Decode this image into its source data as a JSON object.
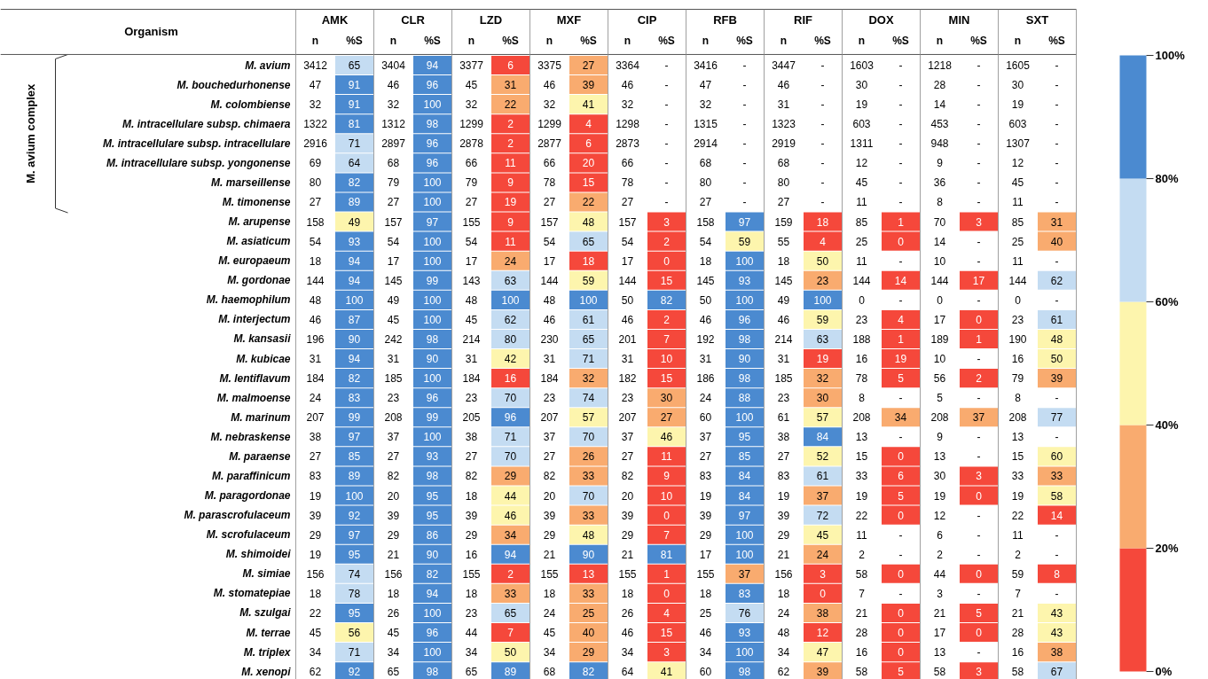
{
  "chart_data": {
    "type": "heatmap",
    "categories": [
      "n",
      "%S",
      "n",
      "%S",
      "n",
      "%S",
      "n",
      "%S",
      "n",
      "%S",
      "n",
      "%S",
      "n",
      "%S",
      "n",
      "%S",
      "n",
      "%S",
      "n",
      "%S"
    ],
    "y_categories": [
      "M. avium",
      "M. bouchedurhonense",
      "M. colombiense",
      "M. intracellulare subsp. chimaera",
      "M. intracellulare subsp. intracellulare",
      "M. intracellulare subsp. yongonense",
      "M. marseillense",
      "M. timonense",
      "M. arupense",
      "M. asiaticum",
      "M. europaeum",
      "M. gordonae",
      "M. haemophilum",
      "M. interjectum",
      "M. kansasii",
      "M. kubicae",
      "M. lentiflavum",
      "M. malmoense",
      "M. marinum",
      "M. nebraskense",
      "M. paraense",
      "M. paraffinicum",
      "M. paragordonae",
      "M. parascrofulaceum",
      "M. scrofulaceum",
      "M. shimoidei",
      "M. simiae",
      "M. stomatepiae",
      "M. szulgai",
      "M. terrae",
      "M. triplex",
      "M. xenopi"
    ],
    "cells": [
      [
        null,
        65,
        null,
        94,
        null,
        6,
        null,
        27,
        null,
        null,
        null,
        null,
        null,
        null,
        null,
        null,
        null,
        null,
        null,
        null
      ],
      [
        null,
        91,
        null,
        96,
        null,
        31,
        null,
        39,
        null,
        null,
        null,
        null,
        null,
        null,
        null,
        null,
        null,
        null,
        null,
        null
      ],
      [
        null,
        91,
        null,
        100,
        null,
        22,
        null,
        41,
        null,
        null,
        null,
        null,
        null,
        null,
        null,
        null,
        null,
        null,
        null,
        null
      ],
      [
        null,
        81,
        null,
        98,
        null,
        2,
        null,
        4,
        null,
        null,
        null,
        null,
        null,
        null,
        null,
        null,
        null,
        null,
        null,
        null
      ],
      [
        null,
        71,
        null,
        96,
        null,
        2,
        null,
        6,
        null,
        null,
        null,
        null,
        null,
        null,
        null,
        null,
        null,
        null,
        null,
        null
      ],
      [
        null,
        64,
        null,
        96,
        null,
        11,
        null,
        20,
        null,
        null,
        null,
        null,
        null,
        null,
        null,
        null,
        null,
        null,
        null,
        null
      ],
      [
        null,
        82,
        null,
        100,
        null,
        9,
        null,
        15,
        null,
        null,
        null,
        null,
        null,
        null,
        null,
        null,
        null,
        null,
        null,
        null
      ],
      [
        null,
        89,
        null,
        100,
        null,
        19,
        null,
        22,
        null,
        null,
        null,
        null,
        null,
        null,
        null,
        null,
        null,
        null,
        null,
        null
      ],
      [
        null,
        49,
        null,
        97,
        null,
        9,
        null,
        48,
        null,
        3,
        null,
        97,
        null,
        18,
        null,
        1,
        null,
        3,
        null,
        31
      ],
      [
        null,
        93,
        null,
        100,
        null,
        11,
        null,
        65,
        null,
        2,
        null,
        59,
        null,
        4,
        null,
        0,
        null,
        null,
        null,
        40
      ],
      [
        null,
        94,
        null,
        100,
        null,
        24,
        null,
        18,
        null,
        0,
        null,
        100,
        null,
        50,
        null,
        null,
        null,
        null,
        null,
        null
      ],
      [
        null,
        94,
        null,
        99,
        null,
        63,
        null,
        59,
        null,
        15,
        null,
        93,
        null,
        23,
        null,
        14,
        null,
        17,
        null,
        62
      ],
      [
        null,
        100,
        null,
        100,
        null,
        100,
        null,
        100,
        null,
        82,
        null,
        100,
        null,
        100,
        null,
        null,
        null,
        null,
        null,
        null
      ],
      [
        null,
        87,
        null,
        100,
        null,
        62,
        null,
        61,
        null,
        2,
        null,
        96,
        null,
        59,
        null,
        4,
        null,
        0,
        null,
        61
      ],
      [
        null,
        90,
        null,
        98,
        null,
        80,
        null,
        65,
        null,
        7,
        null,
        98,
        null,
        63,
        null,
        1,
        null,
        1,
        null,
        48
      ],
      [
        null,
        94,
        null,
        90,
        null,
        42,
        null,
        71,
        null,
        10,
        null,
        90,
        null,
        19,
        null,
        19,
        null,
        null,
        null,
        50
      ],
      [
        null,
        82,
        null,
        100,
        null,
        16,
        null,
        32,
        null,
        15,
        null,
        98,
        null,
        32,
        null,
        5,
        null,
        2,
        null,
        39
      ],
      [
        null,
        83,
        null,
        96,
        null,
        70,
        null,
        74,
        null,
        30,
        null,
        88,
        null,
        30,
        null,
        null,
        null,
        null,
        null,
        null
      ],
      [
        null,
        99,
        null,
        99,
        null,
        96,
        null,
        57,
        null,
        27,
        null,
        100,
        null,
        57,
        null,
        34,
        null,
        37,
        null,
        77
      ],
      [
        null,
        97,
        null,
        100,
        null,
        71,
        null,
        70,
        null,
        46,
        null,
        95,
        null,
        84,
        null,
        null,
        null,
        null,
        null,
        null
      ],
      [
        null,
        85,
        null,
        93,
        null,
        70,
        null,
        26,
        null,
        11,
        null,
        85,
        null,
        52,
        null,
        0,
        null,
        null,
        null,
        60
      ],
      [
        null,
        89,
        null,
        98,
        null,
        29,
        null,
        33,
        null,
        9,
        null,
        84,
        null,
        61,
        null,
        6,
        null,
        3,
        null,
        33
      ],
      [
        null,
        100,
        null,
        95,
        null,
        44,
        null,
        70,
        null,
        10,
        null,
        84,
        null,
        37,
        null,
        5,
        null,
        0,
        null,
        58
      ],
      [
        null,
        92,
        null,
        95,
        null,
        46,
        null,
        33,
        null,
        0,
        null,
        97,
        null,
        72,
        null,
        0,
        null,
        null,
        null,
        14
      ],
      [
        null,
        97,
        null,
        86,
        null,
        34,
        null,
        48,
        null,
        7,
        null,
        100,
        null,
        45,
        null,
        null,
        null,
        null,
        null,
        null
      ],
      [
        null,
        95,
        null,
        90,
        null,
        94,
        null,
        90,
        null,
        81,
        null,
        100,
        null,
        24,
        null,
        null,
        null,
        null,
        null,
        null
      ],
      [
        null,
        74,
        null,
        82,
        null,
        2,
        null,
        13,
        null,
        1,
        null,
        37,
        null,
        3,
        null,
        0,
        null,
        0,
        null,
        8
      ],
      [
        null,
        78,
        null,
        94,
        null,
        33,
        null,
        33,
        null,
        0,
        null,
        83,
        null,
        0,
        null,
        null,
        null,
        null,
        null,
        null
      ],
      [
        null,
        95,
        null,
        100,
        null,
        65,
        null,
        25,
        null,
        4,
        null,
        76,
        null,
        38,
        null,
        0,
        null,
        5,
        null,
        43
      ],
      [
        null,
        56,
        null,
        96,
        null,
        7,
        null,
        40,
        null,
        15,
        null,
        93,
        null,
        12,
        null,
        0,
        null,
        0,
        null,
        43
      ],
      [
        null,
        71,
        null,
        100,
        null,
        50,
        null,
        29,
        null,
        3,
        null,
        100,
        null,
        47,
        null,
        0,
        null,
        null,
        null,
        38
      ],
      [
        null,
        92,
        null,
        98,
        null,
        89,
        null,
        82,
        null,
        41,
        null,
        98,
        null,
        39,
        null,
        5,
        null,
        3,
        null,
        67
      ]
    ],
    "cell_labels": [
      [
        "3412",
        "65",
        "3404",
        "94",
        "3377",
        "6",
        "3375",
        "27",
        "3364",
        "-",
        "3416",
        "-",
        "3447",
        "-",
        "1603",
        "-",
        "1218",
        "-",
        "1605",
        "-"
      ],
      [
        "47",
        "91",
        "46",
        "96",
        "45",
        "31",
        "46",
        "39",
        "46",
        "-",
        "47",
        "-",
        "46",
        "-",
        "30",
        "-",
        "28",
        "-",
        "30",
        "-"
      ],
      [
        "32",
        "91",
        "32",
        "100",
        "32",
        "22",
        "32",
        "41",
        "32",
        "-",
        "32",
        "-",
        "31",
        "-",
        "19",
        "-",
        "14",
        "-",
        "19",
        "-"
      ],
      [
        "1322",
        "81",
        "1312",
        "98",
        "1299",
        "2",
        "1299",
        "4",
        "1298",
        "-",
        "1315",
        "-",
        "1323",
        "-",
        "603",
        "-",
        "453",
        "-",
        "603",
        "-"
      ],
      [
        "2916",
        "71",
        "2897",
        "96",
        "2878",
        "2",
        "2877",
        "6",
        "2873",
        "-",
        "2914",
        "-",
        "2919",
        "-",
        "1311",
        "-",
        "948",
        "-",
        "1307",
        "-"
      ],
      [
        "69",
        "64",
        "68",
        "96",
        "66",
        "11",
        "66",
        "20",
        "66",
        "-",
        "68",
        "-",
        "68",
        "-",
        "12",
        "-",
        "9",
        "-",
        "12",
        "-"
      ],
      [
        "80",
        "82",
        "79",
        "100",
        "79",
        "9",
        "78",
        "15",
        "78",
        "-",
        "80",
        "-",
        "80",
        "-",
        "45",
        "-",
        "36",
        "-",
        "45",
        "-"
      ],
      [
        "27",
        "89",
        "27",
        "100",
        "27",
        "19",
        "27",
        "22",
        "27",
        "-",
        "27",
        "-",
        "27",
        "-",
        "11",
        "-",
        "8",
        "-",
        "11",
        "-"
      ],
      [
        "158",
        "49",
        "157",
        "97",
        "155",
        "9",
        "157",
        "48",
        "157",
        "3",
        "158",
        "97",
        "159",
        "18",
        "85",
        "1",
        "70",
        "3",
        "85",
        "31"
      ],
      [
        "54",
        "93",
        "54",
        "100",
        "54",
        "11",
        "54",
        "65",
        "54",
        "2",
        "54",
        "59",
        "55",
        "4",
        "25",
        "0",
        "14",
        "-",
        "25",
        "40"
      ],
      [
        "18",
        "94",
        "17",
        "100",
        "17",
        "24",
        "17",
        "18",
        "17",
        "0",
        "18",
        "100",
        "18",
        "50",
        "11",
        "-",
        "10",
        "-",
        "11",
        "-"
      ],
      [
        "144",
        "94",
        "145",
        "99",
        "143",
        "63",
        "144",
        "59",
        "144",
        "15",
        "145",
        "93",
        "145",
        "23",
        "144",
        "14",
        "144",
        "17",
        "144",
        "62"
      ],
      [
        "48",
        "100",
        "49",
        "100",
        "48",
        "100",
        "48",
        "100",
        "50",
        "82",
        "50",
        "100",
        "49",
        "100",
        "0",
        "-",
        "0",
        "-",
        "0",
        "-"
      ],
      [
        "46",
        "87",
        "45",
        "100",
        "45",
        "62",
        "46",
        "61",
        "46",
        "2",
        "46",
        "96",
        "46",
        "59",
        "23",
        "4",
        "17",
        "0",
        "23",
        "61"
      ],
      [
        "196",
        "90",
        "242",
        "98",
        "214",
        "80",
        "230",
        "65",
        "201",
        "7",
        "192",
        "98",
        "214",
        "63",
        "188",
        "1",
        "189",
        "1",
        "190",
        "48"
      ],
      [
        "31",
        "94",
        "31",
        "90",
        "31",
        "42",
        "31",
        "71",
        "31",
        "10",
        "31",
        "90",
        "31",
        "19",
        "16",
        "19",
        "10",
        "-",
        "16",
        "50"
      ],
      [
        "184",
        "82",
        "185",
        "100",
        "184",
        "16",
        "184",
        "32",
        "182",
        "15",
        "186",
        "98",
        "185",
        "32",
        "78",
        "5",
        "56",
        "2",
        "79",
        "39"
      ],
      [
        "24",
        "83",
        "23",
        "96",
        "23",
        "70",
        "23",
        "74",
        "23",
        "30",
        "24",
        "88",
        "23",
        "30",
        "8",
        "-",
        "5",
        "-",
        "8",
        "-"
      ],
      [
        "207",
        "99",
        "208",
        "99",
        "205",
        "96",
        "207",
        "57",
        "207",
        "27",
        "60",
        "100",
        "61",
        "57",
        "208",
        "34",
        "208",
        "37",
        "208",
        "77"
      ],
      [
        "38",
        "97",
        "37",
        "100",
        "38",
        "71",
        "37",
        "70",
        "37",
        "46",
        "37",
        "95",
        "38",
        "84",
        "13",
        "-",
        "9",
        "-",
        "13",
        "-"
      ],
      [
        "27",
        "85",
        "27",
        "93",
        "27",
        "70",
        "27",
        "26",
        "27",
        "11",
        "27",
        "85",
        "27",
        "52",
        "15",
        "0",
        "13",
        "-",
        "15",
        "60"
      ],
      [
        "83",
        "89",
        "82",
        "98",
        "82",
        "29",
        "82",
        "33",
        "82",
        "9",
        "83",
        "84",
        "83",
        "61",
        "33",
        "6",
        "30",
        "3",
        "33",
        "33"
      ],
      [
        "19",
        "100",
        "20",
        "95",
        "18",
        "44",
        "20",
        "70",
        "20",
        "10",
        "19",
        "84",
        "19",
        "37",
        "19",
        "5",
        "19",
        "0",
        "19",
        "58"
      ],
      [
        "39",
        "92",
        "39",
        "95",
        "39",
        "46",
        "39",
        "33",
        "39",
        "0",
        "39",
        "97",
        "39",
        "72",
        "22",
        "0",
        "12",
        "-",
        "22",
        "14"
      ],
      [
        "29",
        "97",
        "29",
        "86",
        "29",
        "34",
        "29",
        "48",
        "29",
        "7",
        "29",
        "100",
        "29",
        "45",
        "11",
        "-",
        "6",
        "-",
        "11",
        "-"
      ],
      [
        "19",
        "95",
        "21",
        "90",
        "16",
        "94",
        "21",
        "90",
        "21",
        "81",
        "17",
        "100",
        "21",
        "24",
        "2",
        "-",
        "2",
        "-",
        "2",
        "-"
      ],
      [
        "156",
        "74",
        "156",
        "82",
        "155",
        "2",
        "155",
        "13",
        "155",
        "1",
        "155",
        "37",
        "156",
        "3",
        "58",
        "0",
        "44",
        "0",
        "59",
        "8"
      ],
      [
        "18",
        "78",
        "18",
        "94",
        "18",
        "33",
        "18",
        "33",
        "18",
        "0",
        "18",
        "83",
        "18",
        "0",
        "7",
        "-",
        "3",
        "-",
        "7",
        "-"
      ],
      [
        "22",
        "95",
        "26",
        "100",
        "23",
        "65",
        "24",
        "25",
        "26",
        "4",
        "25",
        "76",
        "24",
        "38",
        "21",
        "0",
        "21",
        "5",
        "21",
        "43"
      ],
      [
        "45",
        "56",
        "45",
        "96",
        "44",
        "7",
        "45",
        "40",
        "46",
        "15",
        "46",
        "93",
        "48",
        "12",
        "28",
        "0",
        "17",
        "0",
        "28",
        "43"
      ],
      [
        "34",
        "71",
        "34",
        "100",
        "34",
        "50",
        "34",
        "29",
        "34",
        "3",
        "34",
        "100",
        "34",
        "47",
        "16",
        "0",
        "13",
        "-",
        "16",
        "38"
      ],
      [
        "62",
        "92",
        "65",
        "98",
        "65",
        "89",
        "68",
        "82",
        "64",
        "41",
        "60",
        "98",
        "62",
        "39",
        "58",
        "5",
        "58",
        "3",
        "58",
        "67"
      ]
    ],
    "clim": [
      0,
      100
    ],
    "cticks": [
      {
        "value": 0,
        "label": "0%"
      },
      {
        "value": 20,
        "label": "20%"
      },
      {
        "value": 40,
        "label": "40%"
      },
      {
        "value": 60,
        "label": "60%"
      },
      {
        "value": 80,
        "label": "80%"
      },
      {
        "value": 100,
        "label": "100%"
      }
    ],
    "colors": [
      "#f5483b",
      "#f9ab6f",
      "#fdf5ad",
      "#c4dcf2",
      "#4b8ad0"
    ],
    "annotations": [
      "Organism",
      "AMK",
      "CLR",
      "LZD",
      "MXF",
      "CIP",
      "RFB",
      "RIF",
      "DOX",
      "MIN",
      "SXT",
      "M. avium complex"
    ]
  }
}
